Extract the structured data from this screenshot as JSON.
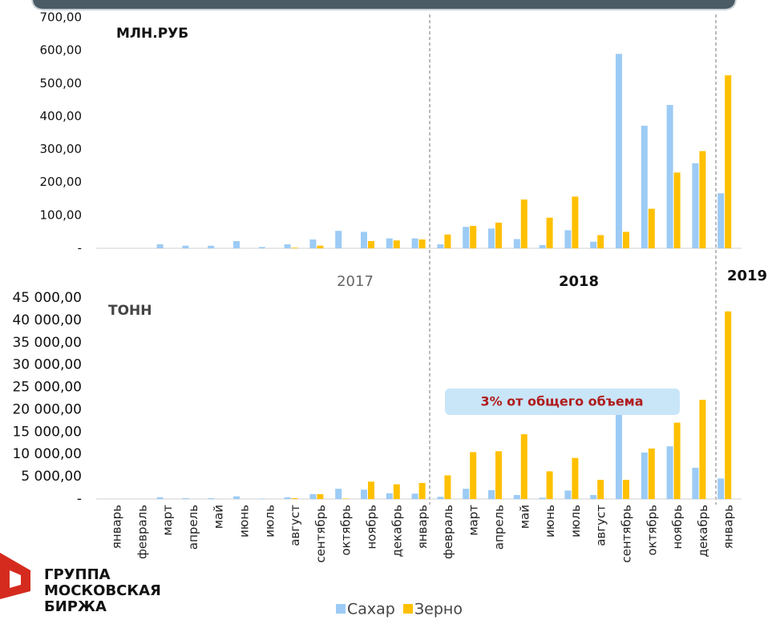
{
  "chart_data": [
    {
      "type": "bar",
      "y_label": "МЛН.РУБ",
      "ylim": [
        0,
        700
      ],
      "yticks": [
        {
          "value": 0,
          "label": "-"
        },
        {
          "value": 100,
          "label": "100,00"
        },
        {
          "value": 200,
          "label": "200,00"
        },
        {
          "value": 300,
          "label": "300,00"
        },
        {
          "value": 400,
          "label": "400,00"
        },
        {
          "value": 500,
          "label": "500,00"
        },
        {
          "value": 600,
          "label": "600,00"
        },
        {
          "value": 700,
          "label": "700,00"
        }
      ],
      "series": [
        {
          "color": "#9ccbf5",
          "values": [
            0,
            0,
            12,
            8,
            8,
            22,
            4,
            12,
            27,
            53,
            50,
            30,
            30,
            12,
            65,
            60,
            28,
            10,
            55,
            20,
            590,
            372,
            435,
            258,
            167
          ]
        },
        {
          "color": "#ffc000",
          "values": [
            0,
            0,
            0,
            0,
            0,
            0,
            0,
            2,
            8,
            0,
            22,
            24,
            27,
            42,
            68,
            78,
            148,
            93,
            157,
            40,
            50,
            120,
            230,
            295,
            525
          ]
        }
      ]
    },
    {
      "type": "bar",
      "y_label": "ТОНН",
      "categories": [
        "январь",
        "февраль",
        "март",
        "апрель",
        "май",
        "июнь",
        "июль",
        "август",
        "сентябрь",
        "октябрь",
        "ноябрь",
        "декабрь",
        "январь",
        "февраль",
        "март",
        "апрель",
        "май",
        "июнь",
        "июль",
        "август",
        "сентябрь",
        "октябрь",
        "ноябрь",
        "декабрь",
        "январь"
      ],
      "ylim": [
        0,
        45000
      ],
      "yticks": [
        {
          "value": 0,
          "label": "-"
        },
        {
          "value": 5000,
          "label": "5 000,00"
        },
        {
          "value": 10000,
          "label": "10 000,00"
        },
        {
          "value": 15000,
          "label": "15 000,00"
        },
        {
          "value": 20000,
          "label": "20 000,00"
        },
        {
          "value": 25000,
          "label": "25 000,00"
        },
        {
          "value": 30000,
          "label": "30 000,00"
        },
        {
          "value": 35000,
          "label": "35 000,00"
        },
        {
          "value": 40000,
          "label": "40 000,00"
        },
        {
          "value": 45000,
          "label": "45 000,00"
        }
      ],
      "series": [
        {
          "name": "Сахар",
          "color": "#9ccbf5",
          "values": [
            0,
            0,
            400,
            200,
            200,
            600,
            100,
            400,
            1100,
            2300,
            2100,
            1300,
            1200,
            500,
            2300,
            2000,
            900,
            300,
            1900,
            900,
            19500,
            10400,
            11800,
            7000,
            4600
          ]
        },
        {
          "name": "Зерно",
          "color": "#ffc000",
          "values": [
            0,
            0,
            0,
            0,
            0,
            0,
            0,
            200,
            1100,
            100,
            3900,
            3300,
            3600,
            5300,
            10500,
            10700,
            14500,
            6200,
            9200,
            4300,
            4300,
            11300,
            17100,
            22200,
            42000
          ]
        }
      ],
      "annotation": "3% от общего объема"
    }
  ],
  "years": [
    "2017",
    "2018",
    "2019"
  ],
  "logo": [
    "ГРУППА",
    "МОСКОВСКАЯ",
    "БИРЖА"
  ]
}
